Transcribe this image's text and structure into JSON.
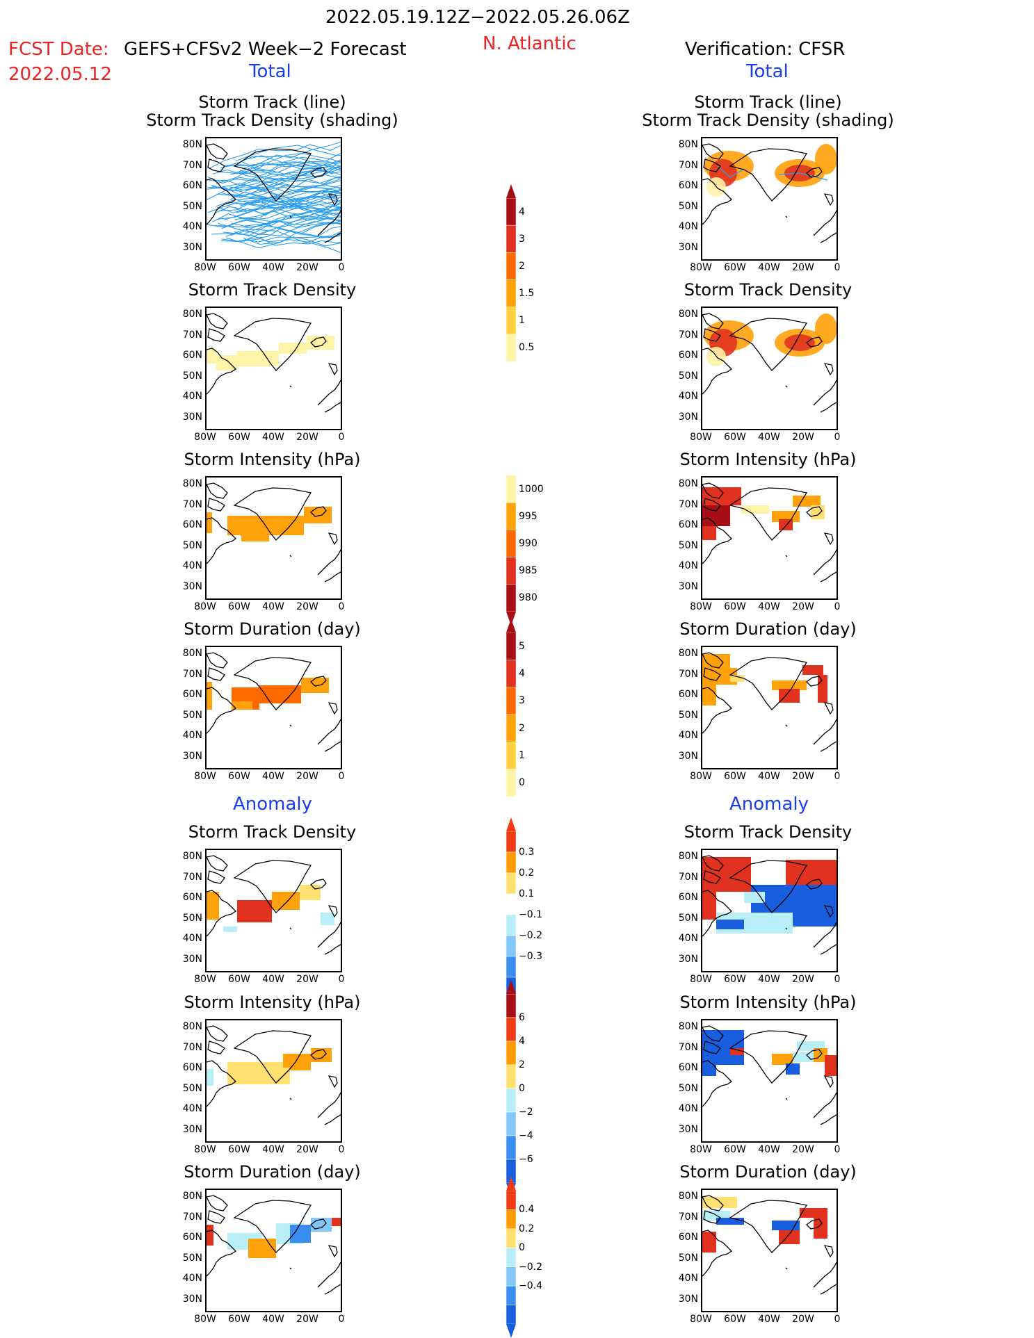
{
  "header": {
    "period": "2022.05.19.12Z−2022.05.26.06Z",
    "fcst_label": "FCST Date:",
    "forecast_title": "GEFS+CFSv2 Week−2 Forecast",
    "fcst_date": "2022.05.12",
    "region": "N. Atlantic",
    "verification": "Verification: CFSR",
    "total_left": "Total",
    "total_right": "Total",
    "anomaly_left": "Anomaly",
    "anomaly_right": "Anomaly"
  },
  "panels": {
    "track_line": "Storm Track (line)",
    "track_shading": "Storm Track Density (shading)",
    "density": "Storm Track Density",
    "intensity": "Storm Intensity (hPa)",
    "duration": "Storm Duration (day)"
  },
  "axes": {
    "lat_labels": [
      "80N",
      "70N",
      "60N",
      "50N",
      "40N",
      "30N"
    ],
    "lon_labels": [
      "80W",
      "60W",
      "40W",
      "20W",
      "0"
    ]
  },
  "colorbars": {
    "density_total": {
      "labels": [
        "4",
        "3",
        "2",
        "1.5",
        "1",
        "0.5"
      ],
      "colors": [
        "#a50f15",
        "#e0321e",
        "#ff6a00",
        "#ffa10a",
        "#ffd040",
        "#fff3a8"
      ]
    },
    "intensity_total": {
      "labels": [
        "1000",
        "995",
        "990",
        "985",
        "980"
      ],
      "colors": [
        "#fff3a8",
        "#ffa10a",
        "#ff6a00",
        "#e0321e",
        "#a50f15"
      ]
    },
    "duration_total": {
      "labels": [
        "5",
        "4",
        "3",
        "2",
        "1",
        "0"
      ],
      "colors": [
        "#a50f15",
        "#e0321e",
        "#ff6a00",
        "#ffa10a",
        "#ffd040",
        "#fff3a8"
      ]
    },
    "density_anom": {
      "labels": [
        "0.3",
        "0.2",
        "0.1",
        "−0.1",
        "−0.2",
        "−0.3"
      ],
      "colors": [
        "#f03c14",
        "#ff9a00",
        "#ffe070",
        "#ffffff",
        "#b8eef8",
        "#82c8f8",
        "#3a8ef0",
        "#1a5ee0"
      ]
    },
    "intensity_anom": {
      "labels": [
        "6",
        "4",
        "2",
        "0",
        "−2",
        "−4",
        "−6"
      ],
      "colors": [
        "#a50f15",
        "#f03c14",
        "#ff9a00",
        "#ffe070",
        "#b8eef8",
        "#82c8f8",
        "#3a8ef0",
        "#1a5ee0"
      ]
    },
    "duration_anom": {
      "labels": [
        "0.4",
        "0.2",
        "0",
        "−0.2",
        "−0.4"
      ],
      "colors": [
        "#f03c14",
        "#ff9a00",
        "#ffe070",
        "#b8eef8",
        "#82c8f8",
        "#3a8ef0",
        "#1a5ee0"
      ]
    }
  },
  "colors": {
    "blue_text": "#1a3cf0",
    "red_text": "#ee2222",
    "track_line": "#2a9df0"
  }
}
